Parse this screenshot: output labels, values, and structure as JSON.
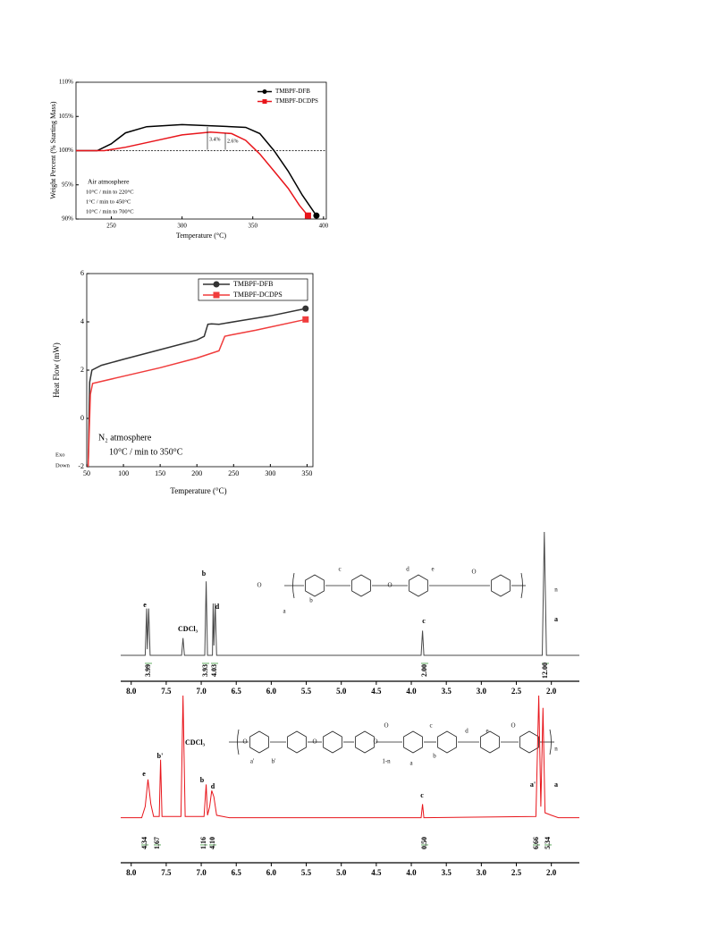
{
  "chart_data": [
    {
      "type": "line",
      "x_label": "Temperature (°C)",
      "y_label": "Weight Percent (% Starting Mass)",
      "xlim": [
        225,
        402
      ],
      "ylim": [
        90,
        110
      ],
      "xticks": [
        250,
        300,
        350,
        400
      ],
      "yticks": [
        {
          "value": 90,
          "label": "90%"
        },
        {
          "value": 95,
          "label": "95%"
        },
        {
          "value": 100,
          "label": "100%"
        },
        {
          "value": 105,
          "label": "105%"
        },
        {
          "value": 110,
          "label": "110%"
        }
      ],
      "reference_line": 100,
      "legend": "upper right",
      "series": [
        {
          "name": "TMBPF-DFB",
          "color": "#000000",
          "marker": "circle",
          "x": [
            225,
            240,
            250,
            260,
            275,
            300,
            325,
            345,
            355,
            365,
            375,
            385,
            395
          ],
          "values": [
            100,
            100,
            101,
            102.6,
            103.5,
            103.8,
            103.6,
            103.4,
            102.5,
            100,
            97,
            93.5,
            90.5
          ]
        },
        {
          "name": "TMBPF-DCDPS",
          "color": "#e8151b",
          "marker": "square",
          "x": [
            225,
            245,
            260,
            280,
            300,
            320,
            335,
            345,
            355,
            365,
            375,
            383,
            389
          ],
          "values": [
            100,
            100,
            100.5,
            101.4,
            102.3,
            102.7,
            102.5,
            101.5,
            99.5,
            97,
            94.5,
            92,
            90.5
          ]
        }
      ],
      "annotations": [
        "3.4%",
        "2.6%",
        "Air atmosphere",
        "10°C / min to 220°C",
        "1°C / min to 450°C",
        "10°C / min to 700°C"
      ]
    },
    {
      "type": "line",
      "x_label": "Temperature (°C)",
      "y_label": "Heat Flow (mW)",
      "xlim": [
        50,
        358
      ],
      "ylim": [
        -2,
        6
      ],
      "xticks": [
        50,
        100,
        150,
        200,
        250,
        300,
        350
      ],
      "yticks": [
        -2,
        0,
        2,
        4,
        6
      ],
      "legend": "upper right",
      "series": [
        {
          "name": "TMBPF-DFB",
          "color": "#333333",
          "marker": "circle",
          "x": [
            52,
            54,
            57,
            70,
            100,
            150,
            200,
            210,
            215,
            220,
            230,
            260,
            300,
            348
          ],
          "values": [
            -2,
            1.5,
            2,
            2.2,
            2.45,
            2.85,
            3.25,
            3.4,
            3.9,
            3.92,
            3.9,
            4.05,
            4.25,
            4.55
          ]
        },
        {
          "name": "TMBPF-DCDPS",
          "color": "#f03c3c",
          "marker": "square",
          "x": [
            52,
            55,
            58,
            100,
            150,
            200,
            230,
            238,
            245,
            280,
            348
          ],
          "values": [
            -2,
            1,
            1.45,
            1.75,
            2.1,
            2.5,
            2.8,
            3.4,
            3.45,
            3.65,
            4.1
          ]
        }
      ],
      "annotations": [
        "Exo",
        "Down",
        "N₂ atmosphere",
        "10°C / min to 350°C"
      ]
    },
    {
      "type": "line",
      "xlim": [
        8.15,
        1.6
      ],
      "ylim": [
        0,
        100
      ],
      "xticks": [
        {
          "value": 8,
          "label": "8.0"
        },
        7.5,
        {
          "value": 7,
          "label": "7.0"
        },
        6.5,
        {
          "value": 6,
          "label": "6.0"
        },
        5.5,
        {
          "value": 5,
          "label": "5.0"
        },
        4.5,
        {
          "value": 4,
          "label": "4.0"
        },
        3.5,
        {
          "value": 3,
          "label": "3.0"
        },
        2.5,
        {
          "value": 2,
          "label": "2.0"
        }
      ],
      "series": [
        {
          "color": "#4a4a4a",
          "x": [
            8.15,
            7.8,
            7.78,
            7.77,
            7.75,
            7.73,
            7.28,
            7.26,
            7.24,
            6.95,
            6.93,
            6.91,
            6.84,
            6.83,
            6.82,
            6.8,
            6.78,
            3.86,
            3.84,
            3.82,
            2.13,
            2.1,
            2.07,
            1.6
          ],
          "values": [
            0,
            0,
            38,
            5,
            38,
            0,
            0,
            14,
            0,
            0,
            60,
            0,
            0,
            42,
            8,
            42,
            0,
            0,
            20,
            0,
            0,
            100,
            0,
            0
          ]
        }
      ],
      "peak_labels": [
        "e",
        "CDCl₃",
        "b",
        "d",
        "c",
        "a"
      ],
      "integrals": [
        "3.99",
        "3.93",
        "4.03",
        "2.00",
        "12.00"
      ],
      "structure_labels": [
        "O",
        "c",
        "O",
        "d",
        "e",
        "O",
        "n",
        "a",
        "b"
      ]
    },
    {
      "type": "line",
      "xlim": [
        8.15,
        1.6
      ],
      "ylim": [
        0,
        100
      ],
      "xticks": [
        {
          "value": 8,
          "label": "8.0"
        },
        7.5,
        {
          "value": 7,
          "label": "7.0"
        },
        6.5,
        {
          "value": 6,
          "label": "6.0"
        },
        5.5,
        {
          "value": 5,
          "label": "5.0"
        },
        4.5,
        {
          "value": 4,
          "label": "4.0"
        },
        3.5,
        {
          "value": 3,
          "label": "3.0"
        },
        2.5,
        {
          "value": 2,
          "label": "2.0"
        }
      ],
      "series": [
        {
          "color": "#e8151b",
          "x": [
            8.15,
            7.85,
            7.8,
            7.76,
            7.72,
            7.68,
            7.6,
            7.58,
            7.56,
            7.29,
            7.26,
            7.23,
            6.96,
            6.93,
            6.91,
            6.88,
            6.85,
            6.82,
            6.78,
            6.6,
            3.86,
            3.84,
            3.82,
            2.22,
            2.18,
            2.15,
            2.12,
            2.09,
            2,
            1.9,
            1.6
          ],
          "values": [
            1,
            1,
            10,
            32,
            12,
            2,
            2,
            48,
            2,
            2,
            100,
            2,
            2,
            28,
            3,
            10,
            23,
            18,
            3,
            1,
            1,
            12,
            1,
            2,
            100,
            10,
            90,
            5,
            3,
            1,
            1
          ]
        }
      ],
      "peak_labels": [
        "e",
        "b'",
        "CDCl₃",
        "b",
        "d",
        "c",
        "a'",
        "a"
      ],
      "integrals": [
        "4.34",
        "1.67",
        "1.16",
        "4.10",
        "0.50",
        "6.66",
        "5.34"
      ],
      "structure_labels": [
        "O",
        "O",
        "O",
        "O",
        "1-n",
        "a'",
        "b'",
        "c",
        "d",
        "e",
        "O",
        "n",
        "a",
        "b"
      ]
    }
  ]
}
